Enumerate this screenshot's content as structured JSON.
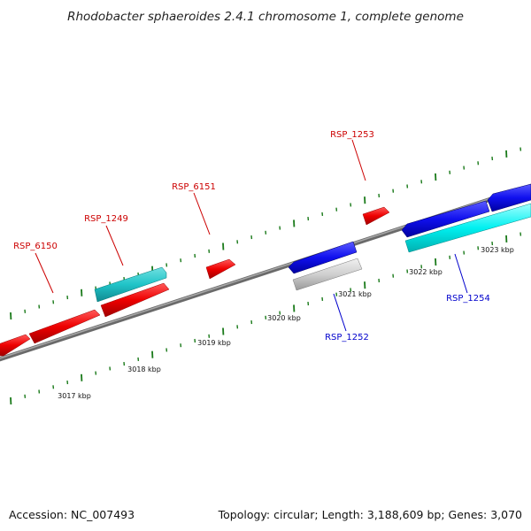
{
  "title": "Rhodobacter sphaeroides 2.4.1 chromosome 1, complete genome",
  "footer": {
    "accession": "Accession: NC_007493",
    "summary": "Topology: circular; Length: 3,188,609 bp; Genes: 3,070"
  },
  "colors": {
    "backbone": "#7a7a7a",
    "tick": "#1a7a1a",
    "forward_label": "#cc0000",
    "reverse_label": "#0000cc"
  },
  "ticks": [
    {
      "label": "3017 kbp"
    },
    {
      "label": "3018 kbp"
    },
    {
      "label": "3019 kbp"
    },
    {
      "label": "3020 kbp"
    },
    {
      "label": "3021 kbp"
    },
    {
      "label": "3022 kbp"
    },
    {
      "label": "3023 kbp"
    }
  ],
  "gene_labels": [
    {
      "name": "RSP_6150",
      "strand": "forward"
    },
    {
      "name": "RSP_1249",
      "strand": "forward"
    },
    {
      "name": "RSP_6151",
      "strand": "forward"
    },
    {
      "name": "RSP_1253",
      "strand": "forward"
    },
    {
      "name": "RSP_1252",
      "strand": "reverse"
    },
    {
      "name": "RSP_1254",
      "strand": "reverse"
    }
  ]
}
